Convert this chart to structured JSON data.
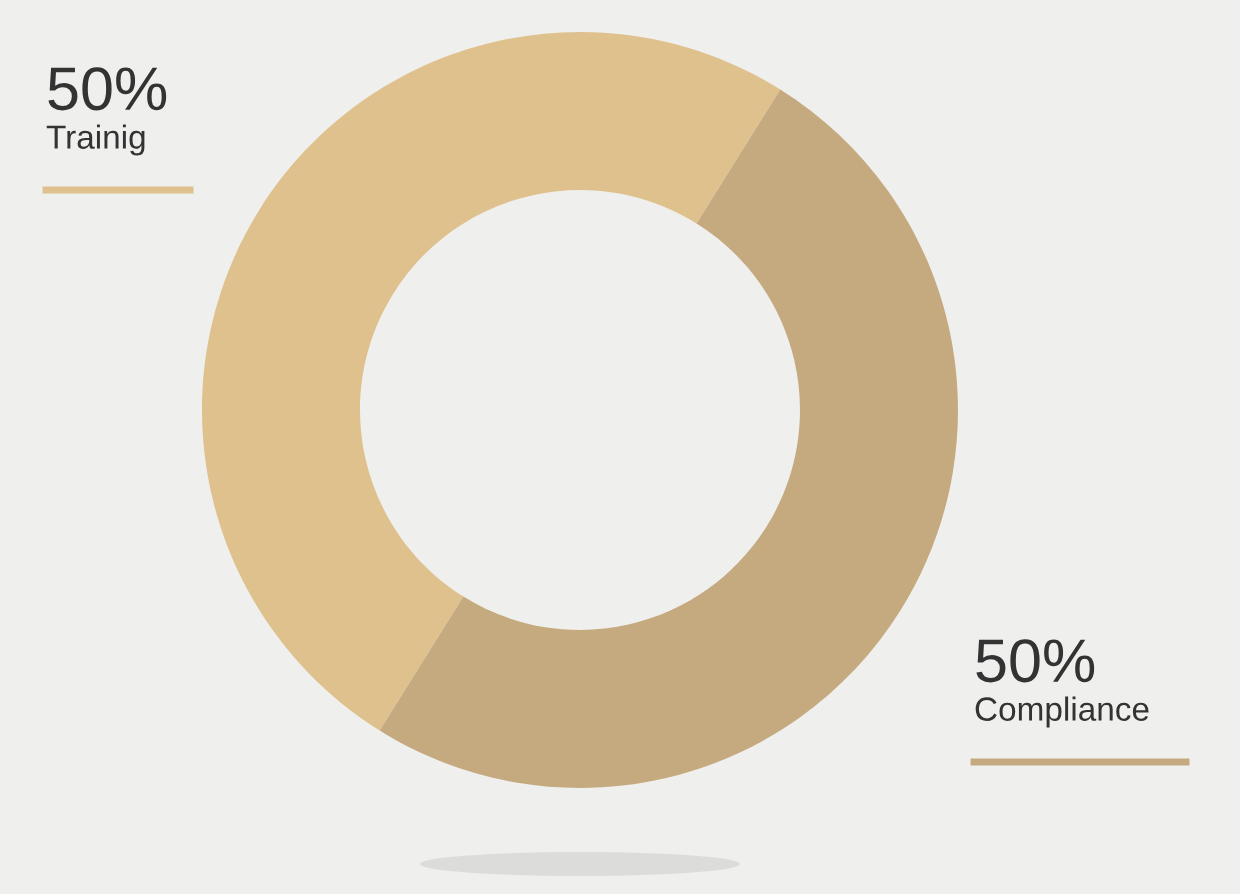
{
  "chart_data": {
    "type": "donut",
    "categories": [
      "Trainig",
      "Compliance"
    ],
    "values": [
      50,
      50
    ],
    "value_labels": [
      "50%",
      "50%"
    ],
    "colors": [
      "#dfc18e",
      "#c5aa80"
    ]
  }
}
